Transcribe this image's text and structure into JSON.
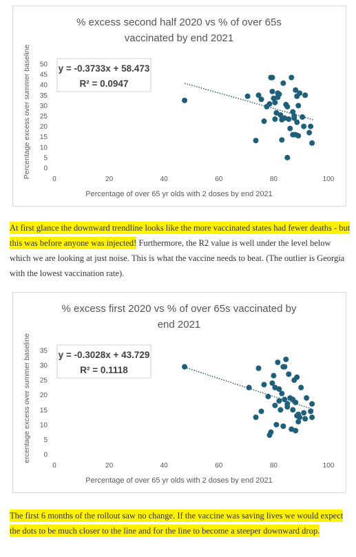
{
  "chart_data": [
    {
      "type": "scatter",
      "title_lines": [
        "% excess second half 2020 vs % of over 65s",
        "vaccinated by end 2021"
      ],
      "xlabel": "Percentage of over 65 yr olds with 2 doses by end 2021",
      "ylabel": "Percentage excess over summer baseline",
      "xlim": [
        0,
        100
      ],
      "ylim": [
        0,
        50
      ],
      "xticks": [
        0,
        20,
        40,
        60,
        80,
        100
      ],
      "yticks": [
        0,
        5,
        10,
        15,
        20,
        25,
        30,
        35,
        40,
        45,
        50
      ],
      "grid": false,
      "point_color": "#1f5f7a",
      "trendline": {
        "type": "linear",
        "slope": -0.3733,
        "intercept": 58.473,
        "x_range": [
          47.5,
          94.5
        ],
        "color": "#1f5f7a",
        "style": "dotted"
      },
      "equation": "y = -0.3733x + 58.473",
      "r2": "R² = 0.0947",
      "points": [
        [
          47.5,
          32.5
        ],
        [
          70.5,
          34.5
        ],
        [
          73.5,
          13.2
        ],
        [
          74.5,
          35
        ],
        [
          75.5,
          33
        ],
        [
          76.5,
          22.5
        ],
        [
          77.5,
          29.5
        ],
        [
          78.5,
          30.8
        ],
        [
          79,
          43.5
        ],
        [
          79.5,
          43.5
        ],
        [
          79.5,
          36.8
        ],
        [
          80,
          33.5
        ],
        [
          80.5,
          23.5
        ],
        [
          80.5,
          31.5
        ],
        [
          81,
          26.5
        ],
        [
          81.5,
          36
        ],
        [
          81.5,
          34
        ],
        [
          82,
          35.5
        ],
        [
          82.5,
          25.5
        ],
        [
          83,
          13.5
        ],
        [
          83,
          23.2
        ],
        [
          83.5,
          40.8
        ],
        [
          84,
          24
        ],
        [
          84.5,
          30.5
        ],
        [
          85,
          29.5
        ],
        [
          85,
          5
        ],
        [
          85.5,
          23.5
        ],
        [
          86,
          19
        ],
        [
          86.5,
          43.5
        ],
        [
          87,
          16
        ],
        [
          87,
          27
        ],
        [
          87.5,
          25
        ],
        [
          87.5,
          24
        ],
        [
          88,
          37.5
        ],
        [
          88,
          16
        ],
        [
          88.5,
          22
        ],
        [
          88.5,
          34.5
        ],
        [
          89,
          30
        ],
        [
          89,
          15.5
        ],
        [
          89.5,
          36
        ],
        [
          90.5,
          24.5
        ],
        [
          91,
          20
        ],
        [
          91.5,
          35
        ],
        [
          93,
          17
        ],
        [
          93.5,
          20
        ],
        [
          94,
          12
        ]
      ]
    },
    {
      "type": "scatter",
      "title_lines": [
        "% excess first 2020 vs % of over 65s vaccinated by",
        "end 2021"
      ],
      "xlabel": "Percentage of over 65 yr olds with 2 doses by end 2021",
      "ylabel": "ercentage excess over summer baseline",
      "xlim": [
        0,
        100
      ],
      "ylim": [
        0,
        35
      ],
      "xticks": [
        0,
        20,
        40,
        60,
        80,
        100
      ],
      "yticks": [
        0,
        5,
        10,
        15,
        20,
        25,
        30,
        35
      ],
      "grid": false,
      "point_color": "#1f5f7a",
      "trendline": {
        "type": "linear",
        "slope": -0.3028,
        "intercept": 43.729,
        "x_range": [
          47.5,
          94.5
        ],
        "color": "#1f5f7a",
        "style": "dotted"
      },
      "equation": "y = -0.3028x + 43.729",
      "r2": "R² = 0.1118",
      "points": [
        [
          47.5,
          29.5
        ],
        [
          71,
          22.5
        ],
        [
          73.5,
          12.5
        ],
        [
          74.5,
          29
        ],
        [
          75.5,
          14.5
        ],
        [
          76.5,
          23.5
        ],
        [
          78,
          19.5
        ],
        [
          78.5,
          6.5
        ],
        [
          79,
          7.5
        ],
        [
          79.5,
          24
        ],
        [
          80,
          26.5
        ],
        [
          80.5,
          22.5
        ],
        [
          80.5,
          16.5
        ],
        [
          81,
          10
        ],
        [
          81.5,
          31
        ],
        [
          82,
          22
        ],
        [
          82.5,
          15
        ],
        [
          83,
          20.5
        ],
        [
          83.5,
          29.5
        ],
        [
          83.5,
          9.5
        ],
        [
          84,
          18.5
        ],
        [
          84.5,
          32
        ],
        [
          85,
          17
        ],
        [
          85,
          16
        ],
        [
          85.5,
          27
        ],
        [
          86,
          19
        ],
        [
          86.5,
          8.5
        ],
        [
          87,
          15
        ],
        [
          87,
          18.5
        ],
        [
          87.5,
          25
        ],
        [
          88,
          17.5
        ],
        [
          88,
          8
        ],
        [
          88.5,
          13
        ],
        [
          89,
          11
        ],
        [
          89,
          13.5
        ],
        [
          89.5,
          12.5
        ],
        [
          90,
          22.5
        ],
        [
          91,
          14
        ],
        [
          91.5,
          12
        ],
        [
          92,
          19
        ],
        [
          93.5,
          14.5
        ],
        [
          94,
          17
        ],
        [
          94,
          12.5
        ],
        [
          88.5,
          26
        ],
        [
          84,
          29.5
        ],
        [
          82,
          18
        ]
      ]
    }
  ],
  "paragraph1": {
    "highlighted": "At first glance the downward trendline looks like the more vaccinated states had fewer deaths - but this was before anyone was injected!",
    "rest": " Furthermore, the R2 value is well under the level below which we are looking at just noise. This is what the vaccine needs to beat. (The outlier is Georgia with the lowest vaccination rate)."
  },
  "paragraph2": {
    "highlighted": "The first 6 months of the rollout saw no change. If the vaccine was saving lives we would expect the dots to be much closer to the line and for the line to become a steeper downward drop."
  }
}
